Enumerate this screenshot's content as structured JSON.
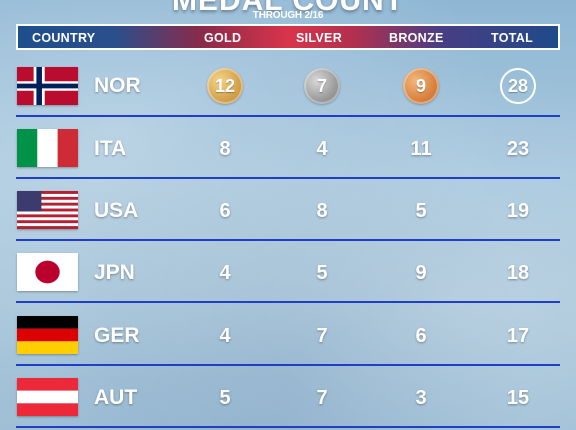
{
  "title": "MEDAL COUNT",
  "subtitle": "THROUGH 2/16",
  "columns": {
    "country": "COUNTRY",
    "gold": "GOLD",
    "silver": "SILVER",
    "bronze": "BRONZE",
    "total": "TOTAL"
  },
  "rows": [
    {
      "code": "NOR",
      "gold": "12",
      "silver": "7",
      "bronze": "9",
      "total": "28"
    },
    {
      "code": "ITA",
      "gold": "8",
      "silver": "4",
      "bronze": "11",
      "total": "23"
    },
    {
      "code": "USA",
      "gold": "6",
      "silver": "8",
      "bronze": "5",
      "total": "19"
    },
    {
      "code": "JPN",
      "gold": "4",
      "silver": "5",
      "bronze": "9",
      "total": "18"
    },
    {
      "code": "GER",
      "gold": "4",
      "silver": "7",
      "bronze": "6",
      "total": "17"
    },
    {
      "code": "AUT",
      "gold": "5",
      "silver": "7",
      "bronze": "3",
      "total": "15"
    }
  ],
  "colors": {
    "row_divider": "#1f3fc7",
    "gold": "#d4a04a",
    "silver": "#9a9a9a",
    "bronze": "#d9803e"
  }
}
